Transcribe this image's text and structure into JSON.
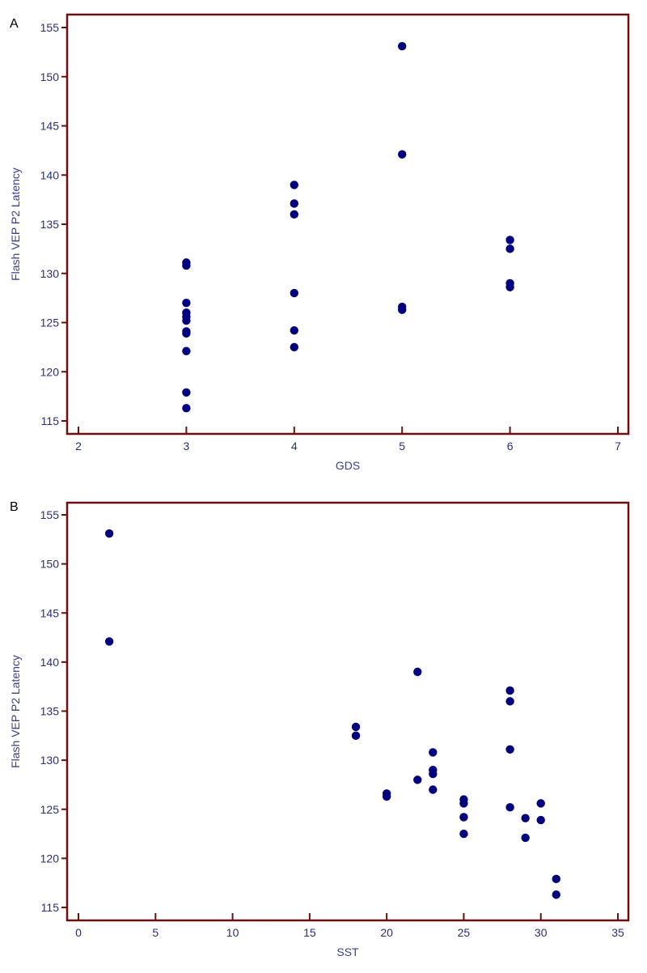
{
  "chart_data": [
    {
      "type": "scatter",
      "panel_label": "A",
      "xlabel": "GDS",
      "ylabel": "Flash VEP P2 Latency",
      "xlim": [
        2,
        7
      ],
      "ylim": [
        115,
        155
      ],
      "xticks": [
        "2",
        "3",
        "4",
        "5",
        "6",
        "7"
      ],
      "yticks": [
        "115",
        "120",
        "125",
        "130",
        "135",
        "140",
        "145",
        "150",
        "155"
      ],
      "point_color": "#00007f",
      "frame_color": "#6b0f0f",
      "grid": false,
      "points": [
        {
          "x": 3,
          "y": 131.1
        },
        {
          "x": 3,
          "y": 130.8
        },
        {
          "x": 3,
          "y": 127.0
        },
        {
          "x": 3,
          "y": 126.0
        },
        {
          "x": 3,
          "y": 125.6
        },
        {
          "x": 3,
          "y": 125.2
        },
        {
          "x": 3,
          "y": 124.1
        },
        {
          "x": 3,
          "y": 123.9
        },
        {
          "x": 3,
          "y": 122.1
        },
        {
          "x": 3,
          "y": 117.9
        },
        {
          "x": 3,
          "y": 116.3
        },
        {
          "x": 4,
          "y": 139.0
        },
        {
          "x": 4,
          "y": 137.1
        },
        {
          "x": 4,
          "y": 136.0
        },
        {
          "x": 4,
          "y": 128.0
        },
        {
          "x": 4,
          "y": 124.2
        },
        {
          "x": 4,
          "y": 122.5
        },
        {
          "x": 5,
          "y": 153.1
        },
        {
          "x": 5,
          "y": 142.1
        },
        {
          "x": 5,
          "y": 126.6
        },
        {
          "x": 5,
          "y": 126.3
        },
        {
          "x": 6,
          "y": 133.4
        },
        {
          "x": 6,
          "y": 132.5
        },
        {
          "x": 6,
          "y": 129.0
        },
        {
          "x": 6,
          "y": 128.6
        }
      ]
    },
    {
      "type": "scatter",
      "panel_label": "B",
      "xlabel": "SST",
      "ylabel": "Flash VEP P2 Latency",
      "xlim": [
        0,
        35
      ],
      "ylim": [
        115,
        155
      ],
      "xticks": [
        "0",
        "5",
        "10",
        "15",
        "20",
        "25",
        "30",
        "35"
      ],
      "yticks": [
        "115",
        "120",
        "125",
        "130",
        "135",
        "140",
        "145",
        "150",
        "155"
      ],
      "point_color": "#00007f",
      "frame_color": "#6b0f0f",
      "grid": false,
      "points": [
        {
          "x": 2,
          "y": 153.1
        },
        {
          "x": 2,
          "y": 142.1
        },
        {
          "x": 18,
          "y": 133.4
        },
        {
          "x": 18,
          "y": 132.5
        },
        {
          "x": 20,
          "y": 126.6
        },
        {
          "x": 20,
          "y": 126.3
        },
        {
          "x": 22,
          "y": 139.0
        },
        {
          "x": 22,
          "y": 128.0
        },
        {
          "x": 23,
          "y": 130.8
        },
        {
          "x": 23,
          "y": 129.0
        },
        {
          "x": 23,
          "y": 128.6
        },
        {
          "x": 23,
          "y": 127.0
        },
        {
          "x": 25,
          "y": 126.0
        },
        {
          "x": 25,
          "y": 125.6
        },
        {
          "x": 25,
          "y": 124.2
        },
        {
          "x": 25,
          "y": 122.5
        },
        {
          "x": 28,
          "y": 137.1
        },
        {
          "x": 28,
          "y": 136.0
        },
        {
          "x": 28,
          "y": 131.1
        },
        {
          "x": 28,
          "y": 125.2
        },
        {
          "x": 29,
          "y": 124.1
        },
        {
          "x": 29,
          "y": 122.1
        },
        {
          "x": 30,
          "y": 125.6
        },
        {
          "x": 30,
          "y": 123.9
        },
        {
          "x": 31,
          "y": 117.9
        },
        {
          "x": 31,
          "y": 116.3
        }
      ]
    }
  ]
}
